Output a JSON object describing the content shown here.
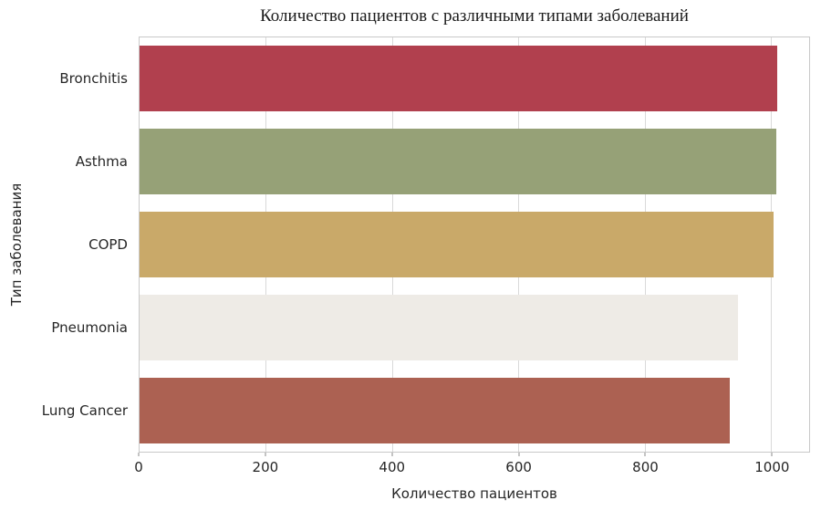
{
  "chart_data": {
    "type": "bar",
    "orientation": "horizontal",
    "title": "Количество пациентов с различными типами заболеваний",
    "xlabel": "Количество пациентов",
    "ylabel": "Тип заболевания",
    "categories": [
      "Bronchitis",
      "Asthma",
      "COPD",
      "Pneumonia",
      "Lung Cancer"
    ],
    "values": [
      1010,
      1008,
      1003,
      947,
      935
    ],
    "bar_colors": [
      "#B1404E",
      "#96A177",
      "#C9A969",
      "#EEEBE6",
      "#AC6152"
    ],
    "xticks": [
      0,
      200,
      400,
      600,
      800,
      1000
    ],
    "xlim": [
      0,
      1060
    ],
    "grid": "vertical",
    "legend_visible": false,
    "colors": {
      "plot_border": "#c9c9c9",
      "gridline": "#d9d9d9",
      "tick_mark": "#8a8a8a",
      "text": "#262626",
      "background": "#ffffff"
    }
  }
}
